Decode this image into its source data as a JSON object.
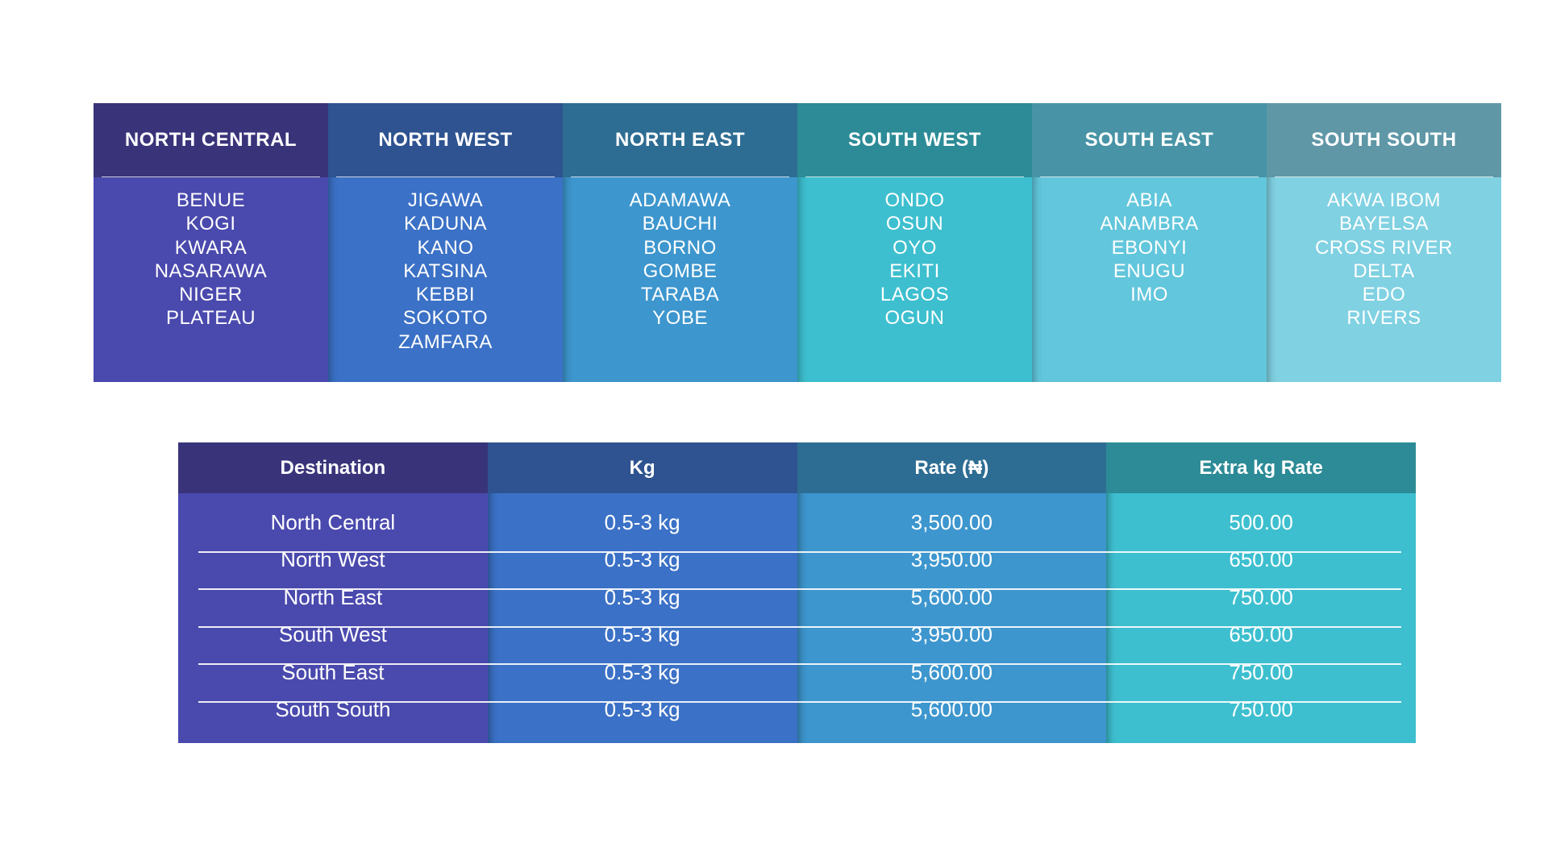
{
  "regions": [
    {
      "name": "NORTH CENTRAL",
      "states": [
        "BENUE",
        "KOGI",
        "KWARA",
        "NASARAWA",
        "NIGER",
        "PLATEAU"
      ],
      "head_color": "#39347a",
      "body_color": "#4a49ad"
    },
    {
      "name": "NORTH WEST",
      "states": [
        "JIGAWA",
        "KADUNA",
        "KANO",
        "KATSINA",
        "KEBBI",
        "SOKOTO",
        "ZAMFARA"
      ],
      "head_color": "#2e5390",
      "body_color": "#3b71c6"
    },
    {
      "name": "NORTH EAST",
      "states": [
        "ADAMAWA",
        "BAUCHI",
        "BORNO",
        "GOMBE",
        "TARABA",
        "YOBE"
      ],
      "head_color": "#2e6d93",
      "body_color": "#3d96ce"
    },
    {
      "name": "SOUTH WEST",
      "states": [
        "ONDO",
        "OSUN",
        "OYO",
        "EKITI",
        "LAGOS",
        "OGUN"
      ],
      "head_color": "#2c8b96",
      "body_color": "#3dbfcf"
    },
    {
      "name": "SOUTH EAST",
      "states": [
        "ABIA",
        "ANAMBRA",
        "EBONYI",
        "ENUGU",
        "IMO"
      ],
      "head_color": "#4894a6",
      "body_color": "#62c6dc"
    },
    {
      "name": "SOUTH SOUTH",
      "states": [
        "AKWA IBOM",
        "BAYELSA",
        "CROSS RIVER",
        "DELTA",
        "EDO",
        "RIVERS"
      ],
      "head_color": "#5f97a7",
      "body_color": "#80d1e2"
    }
  ],
  "rates_table": {
    "columns": [
      {
        "header": "Destination",
        "head_color": "#39347a",
        "body_color": "#4a49ad"
      },
      {
        "header": "Kg",
        "head_color": "#2e5390",
        "body_color": "#3b71c6"
      },
      {
        "header": "Rate (₦)",
        "head_color": "#2e6d93",
        "body_color": "#3d96ce"
      },
      {
        "header": "Extra kg Rate",
        "head_color": "#2c8b96",
        "body_color": "#3dbfcf"
      }
    ],
    "rows": [
      [
        "North Central",
        "0.5-3 kg",
        "3,500.00",
        "500.00"
      ],
      [
        "North West",
        "0.5-3 kg",
        "3,950.00",
        "650.00"
      ],
      [
        "North East",
        "0.5-3 kg",
        "5,600.00",
        "750.00"
      ],
      [
        "South West",
        "0.5-3 kg",
        "3,950.00",
        "650.00"
      ],
      [
        "South East",
        "0.5-3 kg",
        "5,600.00",
        "750.00"
      ],
      [
        "South South",
        "0.5-3 kg",
        "5,600.00",
        "750.00"
      ]
    ]
  }
}
